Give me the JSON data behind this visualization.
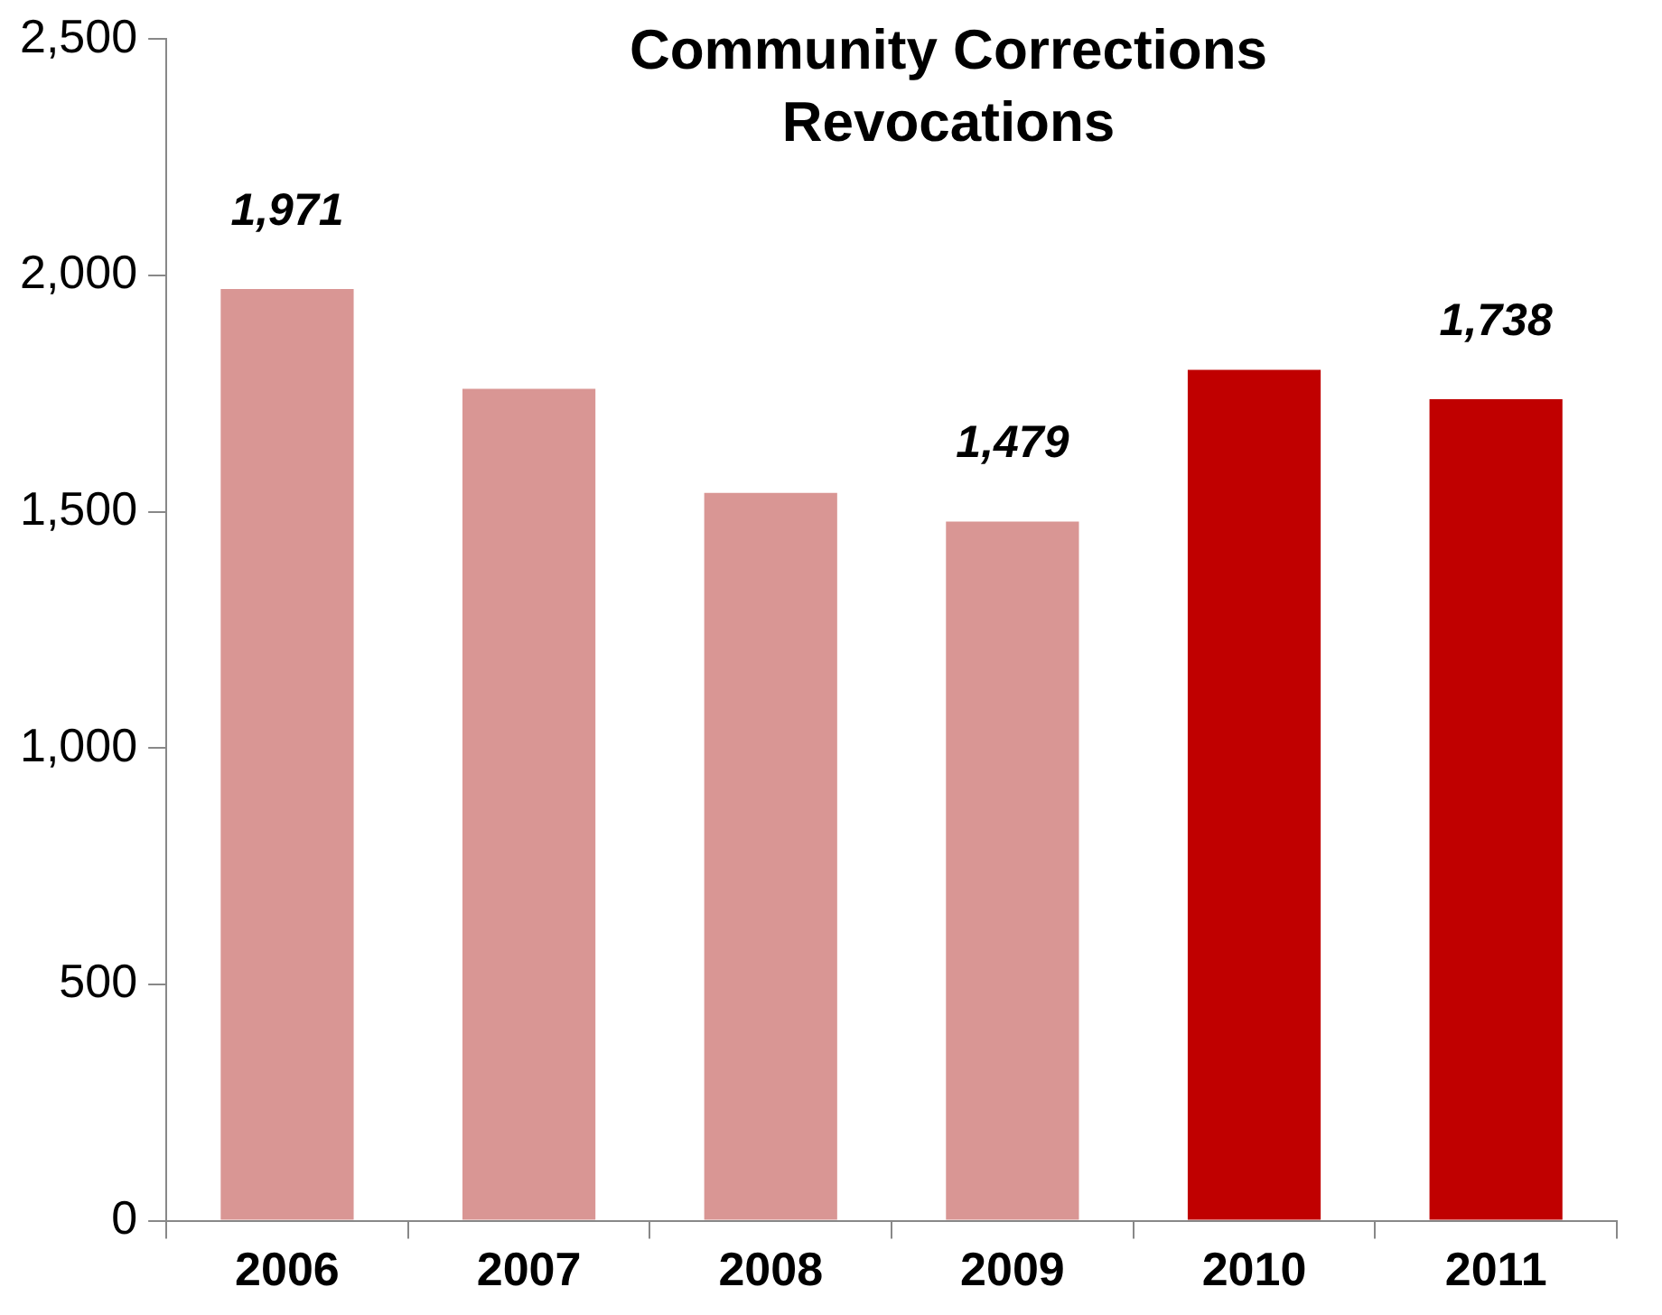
{
  "chart_data": {
    "type": "bar",
    "title": "Community Corrections Revocations",
    "categories": [
      "2006",
      "2007",
      "2008",
      "2009",
      "2010",
      "2011"
    ],
    "values": [
      1971,
      1760,
      1540,
      1479,
      1800,
      1738
    ],
    "colors": [
      "#d99694",
      "#d99694",
      "#d99694",
      "#d99694",
      "#c00000",
      "#c00000"
    ],
    "value_labels": [
      "1,971",
      null,
      null,
      "1,479",
      null,
      "1,738"
    ],
    "ylim": [
      0,
      2500
    ],
    "yticks": [
      {
        "value": 0,
        "label": "0"
      },
      {
        "value": 500,
        "label": "500"
      },
      {
        "value": 1000,
        "label": "1,000"
      },
      {
        "value": 1500,
        "label": "1,500"
      },
      {
        "value": 2000,
        "label": "2,000"
      },
      {
        "value": 2500,
        "label": "2,500"
      }
    ],
    "grid": false,
    "legend": false
  }
}
